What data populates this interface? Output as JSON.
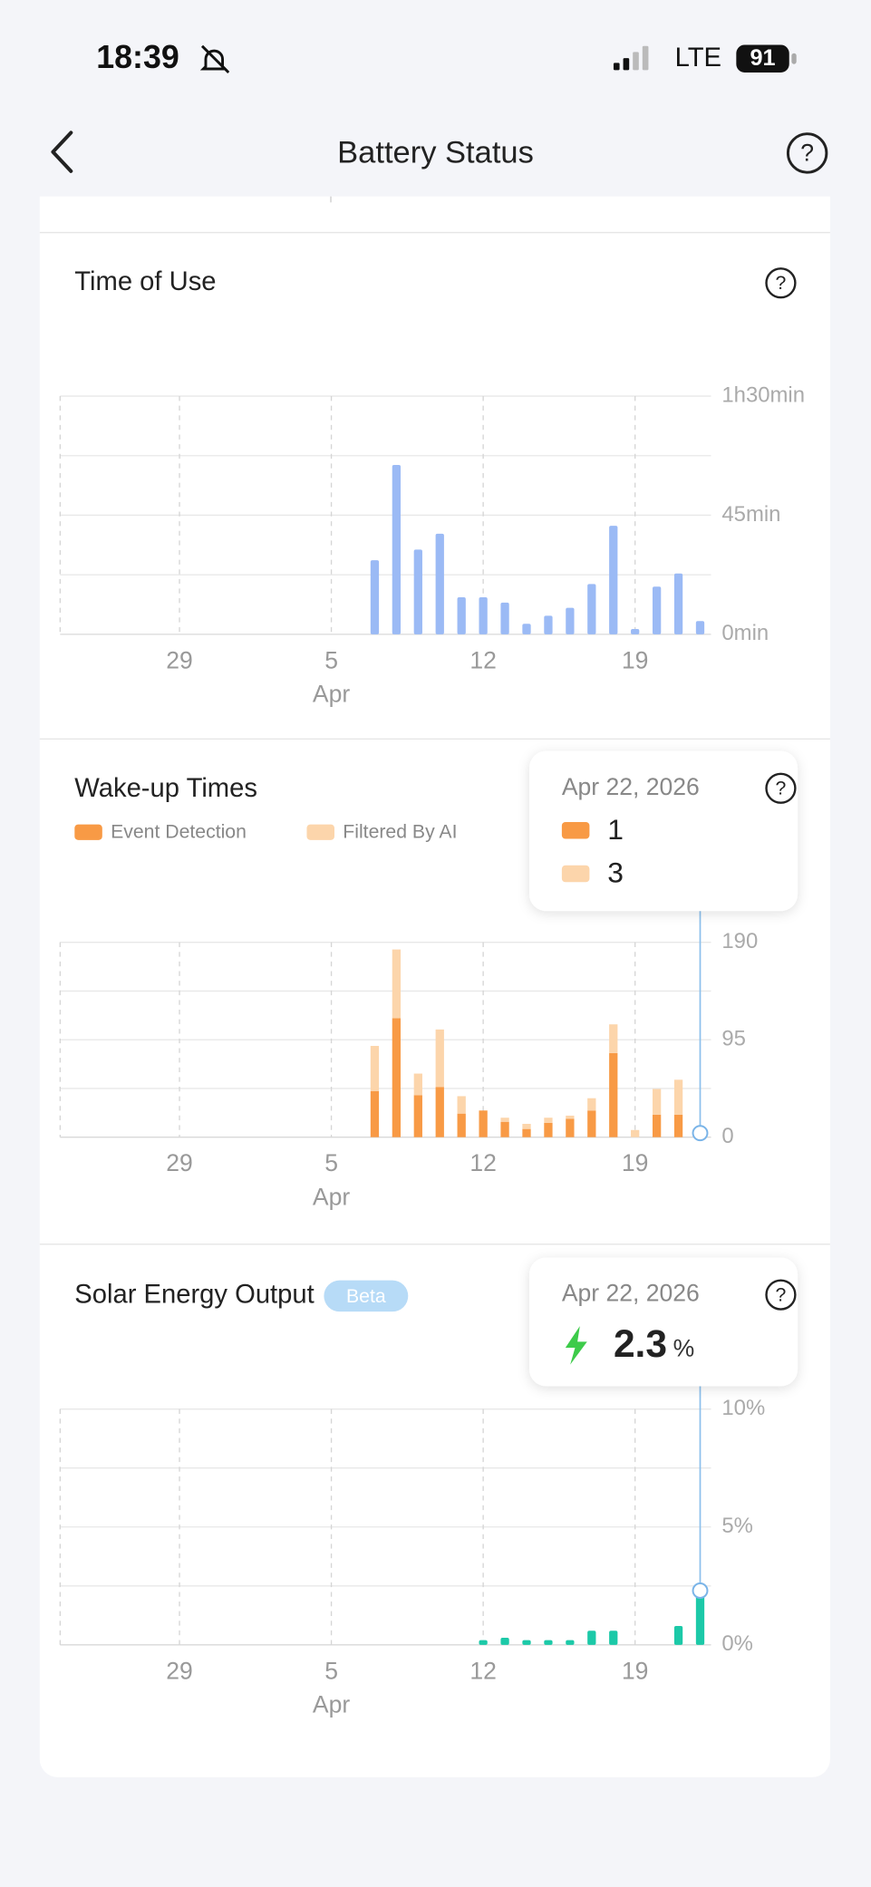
{
  "status_bar": {
    "time": "18:39",
    "network": "LTE",
    "battery": 91
  },
  "header": {
    "title": "Battery Status"
  },
  "chart_data": [
    {
      "type": "bar",
      "title": "Time of Use",
      "color": "#9bbaf5",
      "categories": [
        null,
        null,
        null,
        null,
        null,
        "29",
        null,
        null,
        null,
        null,
        null,
        null,
        "5",
        null,
        null,
        null,
        null,
        null,
        null,
        "12",
        null,
        null,
        null,
        null,
        null,
        null,
        "19",
        null,
        null,
        null
      ],
      "month_labels": [
        {
          "category": "5",
          "label": "Apr"
        }
      ],
      "values": [
        null,
        null,
        null,
        null,
        null,
        null,
        null,
        null,
        null,
        null,
        null,
        null,
        null,
        null,
        28,
        64,
        32,
        38,
        14,
        14,
        12,
        4,
        7,
        10,
        19,
        41,
        2,
        18,
        23,
        5
      ],
      "ylim": [
        0,
        90
      ],
      "yticks": [
        {
          "value": 0,
          "label": "0min"
        },
        {
          "value": 45,
          "label": "45min"
        },
        {
          "value": 90,
          "label": "1h30min"
        }
      ],
      "minor_yticks": [
        22.5,
        67.5
      ],
      "grid": true
    },
    {
      "type": "bar",
      "stacked": true,
      "title": "Wake-up Times",
      "categories": [
        null,
        null,
        null,
        null,
        null,
        "29",
        null,
        null,
        null,
        null,
        null,
        null,
        "5",
        null,
        null,
        null,
        null,
        null,
        null,
        "12",
        null,
        null,
        null,
        null,
        null,
        null,
        "19",
        null,
        null,
        null
      ],
      "month_labels": [
        {
          "category": "5",
          "label": "Apr"
        }
      ],
      "series": [
        {
          "name": "Event Detection",
          "color": "#f89a45",
          "values": [
            null,
            null,
            null,
            null,
            null,
            null,
            null,
            null,
            null,
            null,
            null,
            null,
            null,
            null,
            45,
            116,
            41,
            49,
            23,
            26,
            15,
            8,
            14,
            18,
            26,
            82,
            0,
            22,
            22,
            1
          ]
        },
        {
          "name": "Filtered By AI",
          "color": "#fcd5ab",
          "values": [
            null,
            null,
            null,
            null,
            null,
            null,
            null,
            null,
            null,
            null,
            null,
            null,
            null,
            null,
            44,
            67,
            21,
            56,
            17,
            0,
            4,
            5,
            5,
            3,
            12,
            28,
            7,
            25,
            34,
            3
          ]
        }
      ],
      "ylim": [
        0,
        190
      ],
      "yticks": [
        0,
        95,
        190
      ],
      "minor_yticks": [
        47.5,
        142.5
      ],
      "grid": true,
      "tooltip": {
        "date": "Apr 22, 2026"
      }
    },
    {
      "type": "bar",
      "title": "Solar Energy Output",
      "badge": "Beta",
      "color": "#1cc9a8",
      "categories": [
        null,
        null,
        null,
        null,
        null,
        "29",
        null,
        null,
        null,
        null,
        null,
        null,
        "5",
        null,
        null,
        null,
        null,
        null,
        null,
        "12",
        null,
        null,
        null,
        null,
        null,
        null,
        "19",
        null,
        null,
        null
      ],
      "month_labels": [
        {
          "category": "5",
          "label": "Apr"
        }
      ],
      "values": [
        null,
        null,
        null,
        null,
        null,
        null,
        null,
        null,
        null,
        null,
        null,
        null,
        null,
        null,
        null,
        null,
        null,
        null,
        null,
        0.2,
        0.3,
        0.2,
        0.2,
        0.2,
        0.6,
        0.6,
        null,
        null,
        0.8,
        2.3
      ],
      "ylim": [
        0,
        10
      ],
      "yticks": [
        {
          "value": 0,
          "label": "0%"
        },
        {
          "value": 5,
          "label": "5%"
        },
        {
          "value": 10,
          "label": "10%"
        }
      ],
      "minor_yticks": [
        2.5,
        7.5
      ],
      "grid": true,
      "tooltip": {
        "date": "Apr 22, 2026",
        "unit": "%"
      }
    }
  ]
}
